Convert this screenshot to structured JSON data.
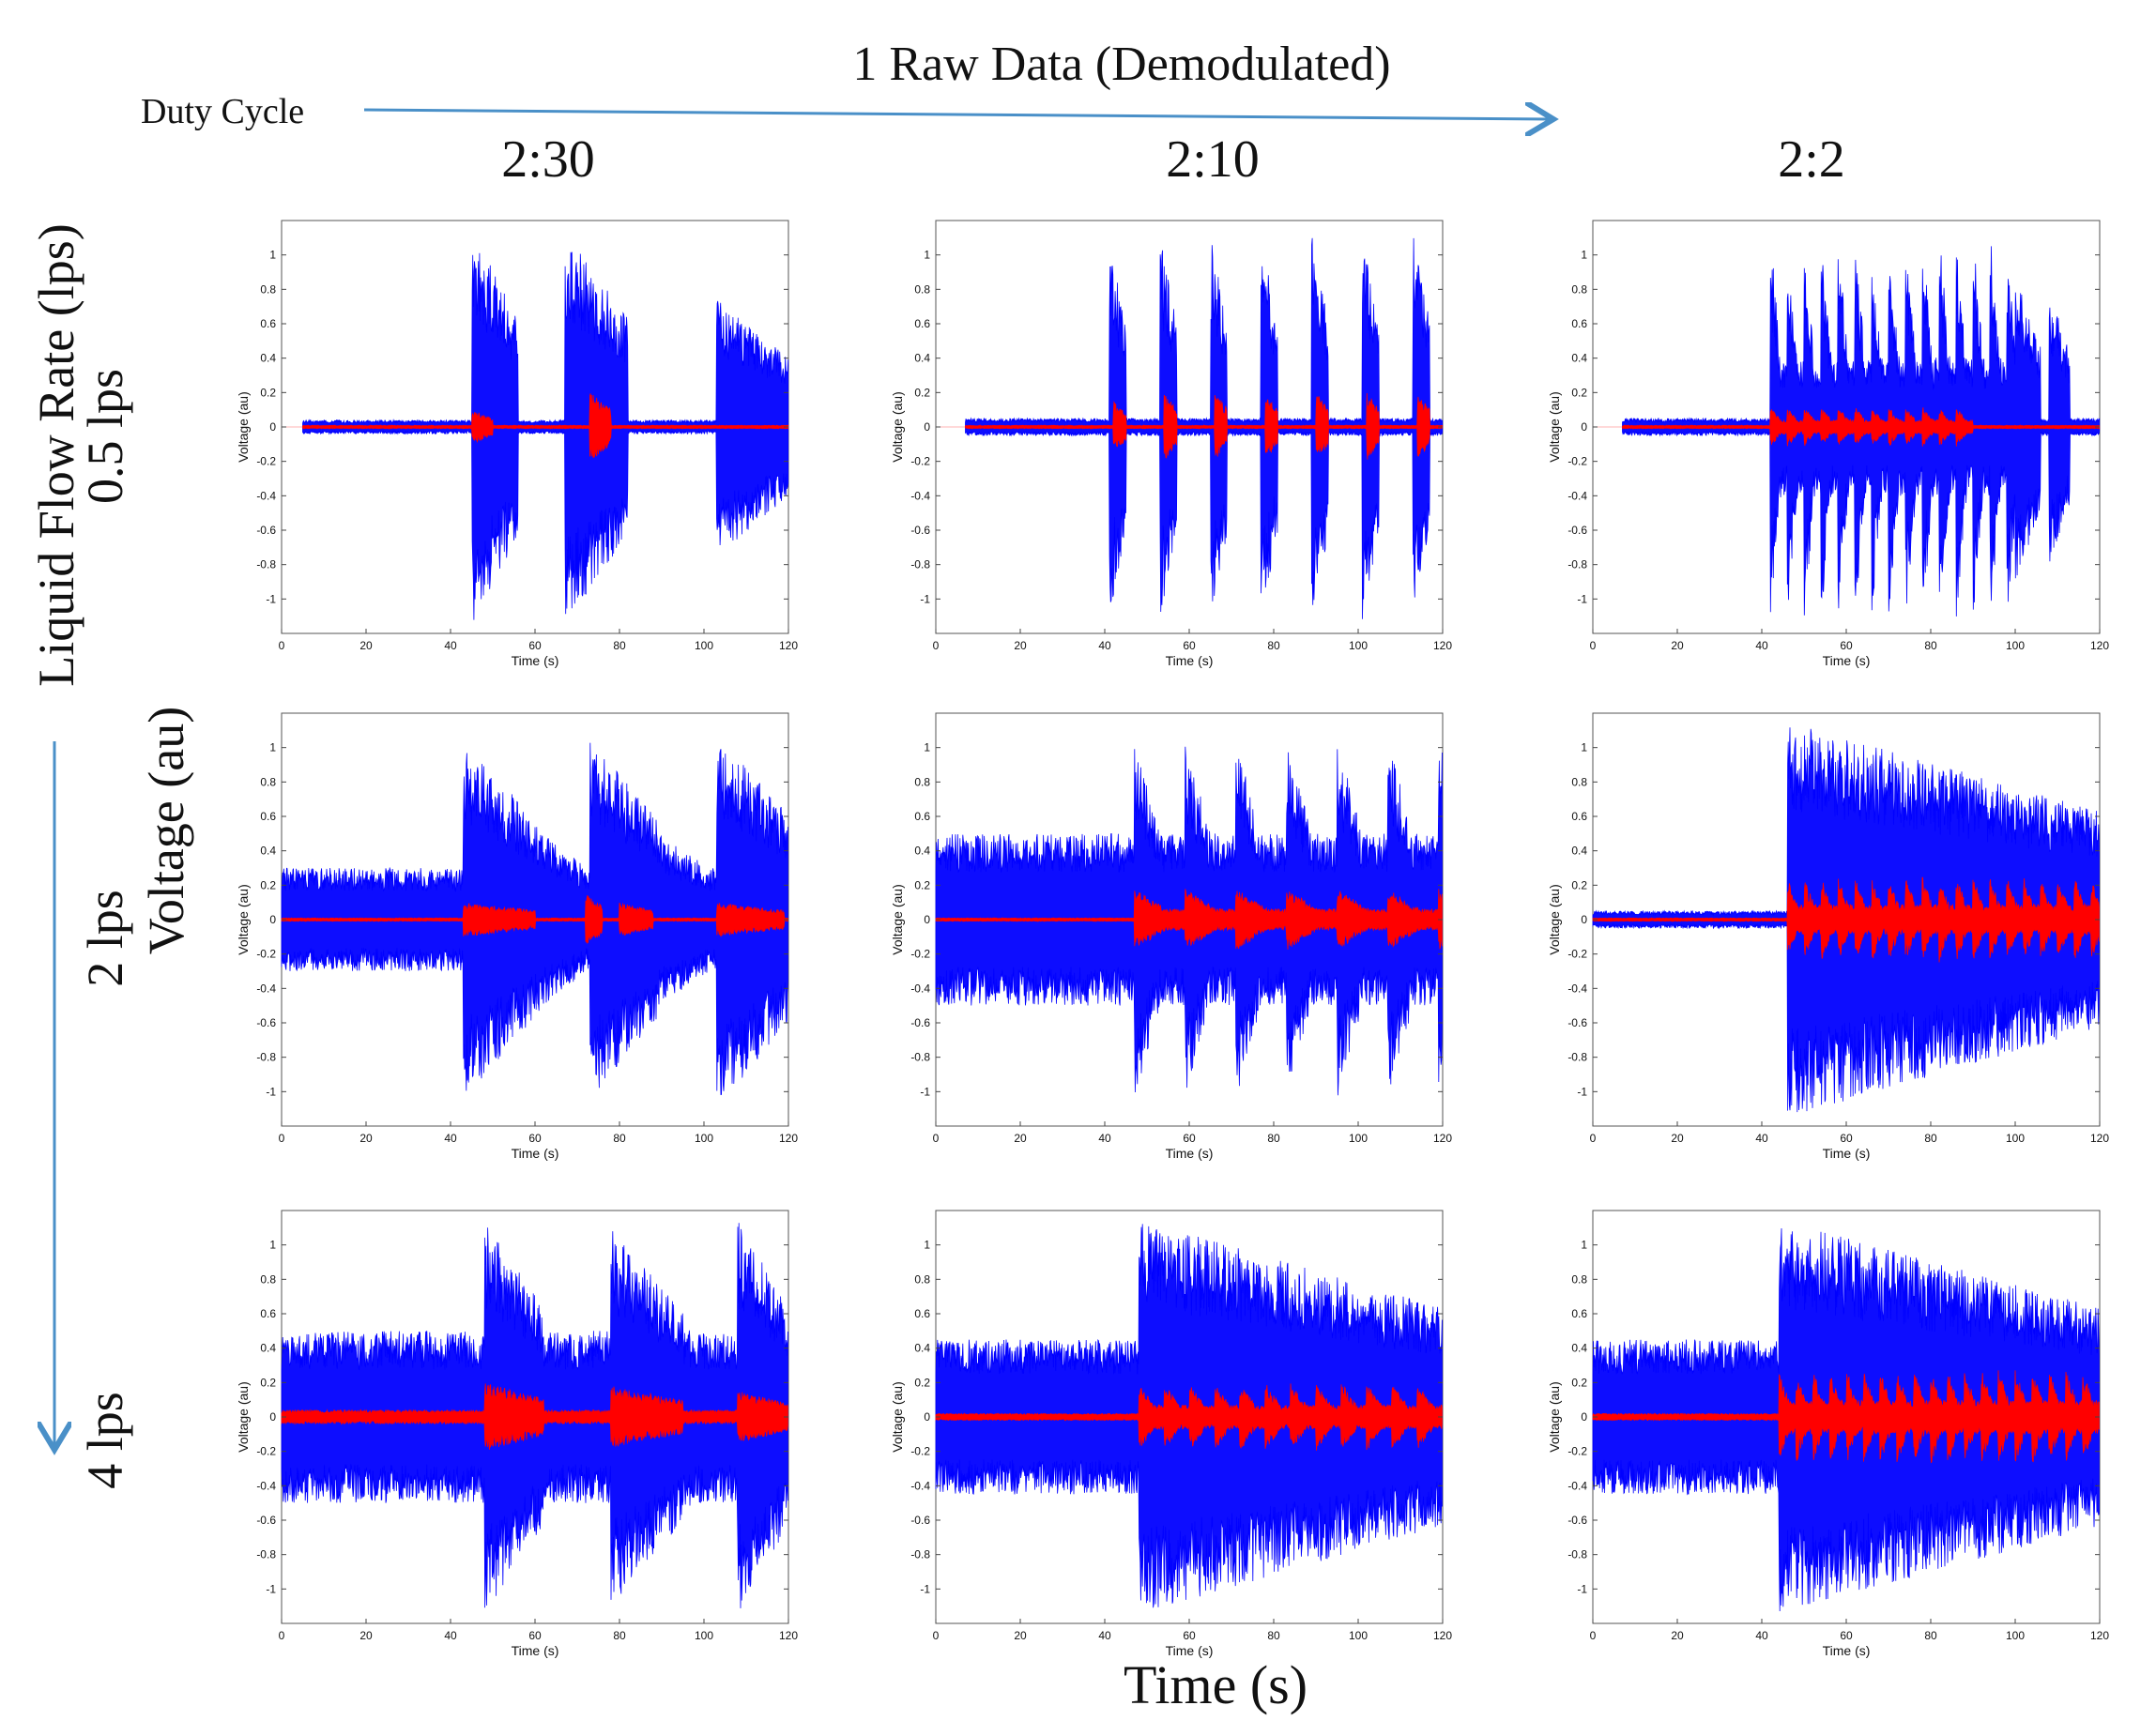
{
  "figure": {
    "title": "1 Raw Data (Demodulated)",
    "duty_cycle_label": "Duty Cycle",
    "columns": [
      "2:30",
      "2:10",
      "2:2"
    ],
    "flow_axis_label": "Liquid Flow Rate (lps)",
    "rows": [
      "0.5 lps",
      "2 lps",
      "4 lps"
    ],
    "common_ylabel": "Voltage (au)",
    "common_xlabel": "Time (s)",
    "colors": {
      "raw": "#0000ff",
      "demodulated": "#ff0000",
      "arrow": "#4a90c8"
    }
  },
  "chart_data": [
    {
      "type": "line",
      "row": "0.5 lps",
      "column": "2:30",
      "xlabel": "Time (s)",
      "ylabel": "Voltage (au)",
      "xlim": [
        0,
        120
      ],
      "ylim": [
        -1.2,
        1.2
      ],
      "xticks": [
        0,
        20,
        40,
        60,
        80,
        100,
        120
      ],
      "yticks": [
        1,
        0.8,
        0.6,
        0.4,
        0.2,
        0,
        -0.2,
        -0.4,
        -0.6,
        -0.8,
        -1
      ],
      "series": [
        {
          "name": "raw",
          "color": "#0000ff",
          "start": 5,
          "baseline": 0.04,
          "bursts": [
            {
              "t0": 45,
              "t1": 56,
              "amp": 1.15
            },
            {
              "t0": 67,
              "t1": 82,
              "amp": 1.15
            },
            {
              "t0": 103,
              "t1": 120,
              "amp": 0.75
            }
          ]
        },
        {
          "name": "demodulated",
          "color": "#ff0000",
          "start": 5,
          "baseline": 0.01,
          "bursts": [
            {
              "t0": 45,
              "t1": 50,
              "amp": 0.1
            },
            {
              "t0": 73,
              "t1": 78,
              "amp": 0.2
            }
          ]
        }
      ]
    },
    {
      "type": "line",
      "row": "0.5 lps",
      "column": "2:10",
      "xlabel": "Time (s)",
      "ylabel": "Voltage (au)",
      "xlim": [
        0,
        120
      ],
      "ylim": [
        -1.2,
        1.2
      ],
      "xticks": [
        0,
        20,
        40,
        60,
        80,
        100,
        120
      ],
      "yticks": [
        1,
        0.8,
        0.6,
        0.4,
        0.2,
        0,
        -0.2,
        -0.4,
        -0.6,
        -0.8,
        -1
      ],
      "series": [
        {
          "name": "raw",
          "color": "#0000ff",
          "start": 7,
          "baseline": 0.05,
          "bursts": [
            {
              "t0": 41,
              "t1": 45,
              "amp": 1.12
            },
            {
              "t0": 53,
              "t1": 57,
              "amp": 1.12
            },
            {
              "t0": 65,
              "t1": 69,
              "amp": 1.12
            },
            {
              "t0": 77,
              "t1": 81,
              "amp": 1.12
            },
            {
              "t0": 89,
              "t1": 93,
              "amp": 1.12
            },
            {
              "t0": 101,
              "t1": 105,
              "amp": 1.12
            },
            {
              "t0": 113,
              "t1": 117,
              "amp": 1.12
            }
          ]
        },
        {
          "name": "demodulated",
          "color": "#ff0000",
          "start": 7,
          "baseline": 0.01,
          "bursts": [
            {
              "t0": 42,
              "t1": 45,
              "amp": 0.15
            },
            {
              "t0": 54,
              "t1": 57,
              "amp": 0.2
            },
            {
              "t0": 66,
              "t1": 69,
              "amp": 0.2
            },
            {
              "t0": 78,
              "t1": 81,
              "amp": 0.2
            },
            {
              "t0": 90,
              "t1": 93,
              "amp": 0.2
            },
            {
              "t0": 102,
              "t1": 105,
              "amp": 0.2
            },
            {
              "t0": 114,
              "t1": 117,
              "amp": 0.2
            }
          ]
        }
      ]
    },
    {
      "type": "line",
      "row": "0.5 lps",
      "column": "2:2",
      "xlabel": "Time (s)",
      "ylabel": "Voltage (au)",
      "xlim": [
        0,
        120
      ],
      "ylim": [
        -1.2,
        1.2
      ],
      "xticks": [
        0,
        20,
        40,
        60,
        80,
        100,
        120
      ],
      "yticks": [
        1,
        0.8,
        0.6,
        0.4,
        0.2,
        0,
        -0.2,
        -0.4,
        -0.6,
        -0.8,
        -1
      ],
      "series": [
        {
          "name": "raw",
          "color": "#0000ff",
          "start": 7,
          "baseline": 0.05,
          "bursts": [
            {
              "t0": 42,
              "t1": 100,
              "amp": 1.15,
              "pulse": 4
            },
            {
              "t0": 100,
              "t1": 106,
              "amp": 0.9
            },
            {
              "t0": 108,
              "t1": 113,
              "amp": 0.8
            }
          ]
        },
        {
          "name": "demodulated",
          "color": "#ff0000",
          "start": 7,
          "baseline": 0.01,
          "bursts": [
            {
              "t0": 42,
              "t1": 90,
              "amp": 0.12,
              "pulse": 4
            }
          ]
        }
      ]
    },
    {
      "type": "line",
      "row": "2 lps",
      "column": "2:30",
      "xlabel": "Time (s)",
      "ylabel": "Voltage (au)",
      "xlim": [
        0,
        120
      ],
      "ylim": [
        -1.2,
        1.2
      ],
      "xticks": [
        0,
        20,
        40,
        60,
        80,
        100,
        120
      ],
      "yticks": [
        1,
        0.8,
        0.6,
        0.4,
        0.2,
        0,
        -0.2,
        -0.4,
        -0.6,
        -0.8,
        -1
      ],
      "series": [
        {
          "name": "raw",
          "color": "#0000ff",
          "start": 0,
          "baseline": 0.3,
          "bursts": [
            {
              "t0": 43,
              "t1": 60,
              "amp": 1.05
            },
            {
              "t0": 60,
              "t1": 72,
              "amp": 0.55
            },
            {
              "t0": 73,
              "t1": 89,
              "amp": 1.05
            },
            {
              "t0": 89,
              "t1": 103,
              "amp": 0.5
            },
            {
              "t0": 103,
              "t1": 120,
              "amp": 1.1
            }
          ]
        },
        {
          "name": "demodulated",
          "color": "#ff0000",
          "start": 0,
          "baseline": 0.01,
          "bursts": [
            {
              "t0": 43,
              "t1": 60,
              "amp": 0.1
            },
            {
              "t0": 72,
              "t1": 76,
              "amp": 0.15
            },
            {
              "t0": 80,
              "t1": 88,
              "amp": 0.1
            },
            {
              "t0": 103,
              "t1": 119,
              "amp": 0.1
            }
          ]
        }
      ]
    },
    {
      "type": "line",
      "row": "2 lps",
      "column": "2:10",
      "xlabel": "Time (s)",
      "ylabel": "Voltage (au)",
      "xlim": [
        0,
        120
      ],
      "ylim": [
        -1.2,
        1.2
      ],
      "xticks": [
        0,
        20,
        40,
        60,
        80,
        100,
        120
      ],
      "yticks": [
        1,
        0.8,
        0.6,
        0.4,
        0.2,
        0,
        -0.2,
        -0.4,
        -0.6,
        -0.8,
        -1
      ],
      "series": [
        {
          "name": "raw",
          "color": "#0000ff",
          "start": 0,
          "baseline": 0.5,
          "bursts": [
            {
              "t0": 30,
              "t1": 47,
              "amp": 0.3
            },
            {
              "t0": 47,
              "t1": 120,
              "amp": 1.05,
              "pulse": 12
            }
          ]
        },
        {
          "name": "demodulated",
          "color": "#ff0000",
          "start": 0,
          "baseline": 0.01,
          "bursts": [
            {
              "t0": 47,
              "t1": 120,
              "amp": 0.18,
              "pulse": 12
            }
          ]
        }
      ]
    },
    {
      "type": "line",
      "row": "2 lps",
      "column": "2:2",
      "xlabel": "Time (s)",
      "ylabel": "Voltage (au)",
      "xlim": [
        0,
        120
      ],
      "ylim": [
        -1.2,
        1.2
      ],
      "xticks": [
        0,
        20,
        40,
        60,
        80,
        100,
        120
      ],
      "yticks": [
        1,
        0.8,
        0.6,
        0.4,
        0.2,
        0,
        -0.2,
        -0.4,
        -0.6,
        -0.8,
        -1
      ],
      "series": [
        {
          "name": "raw",
          "color": "#0000ff",
          "start": 0,
          "baseline": 0.05,
          "bursts": [
            {
              "t0": 46,
              "t1": 120,
              "amp": 1.15
            }
          ]
        },
        {
          "name": "demodulated",
          "color": "#ff0000",
          "start": 0,
          "baseline": 0.01,
          "bursts": [
            {
              "t0": 46,
              "t1": 120,
              "amp": 0.25,
              "pulse": 4
            }
          ]
        }
      ]
    },
    {
      "type": "line",
      "row": "4 lps",
      "column": "2:30",
      "xlabel": "Time (s)",
      "ylabel": "Voltage (au)",
      "xlim": [
        0,
        120
      ],
      "ylim": [
        -1.2,
        1.2
      ],
      "xticks": [
        0,
        20,
        40,
        60,
        80,
        100,
        120
      ],
      "yticks": [
        1,
        0.8,
        0.6,
        0.4,
        0.2,
        0,
        -0.2,
        -0.4,
        -0.6,
        -0.8,
        -1
      ],
      "series": [
        {
          "name": "raw",
          "color": "#0000ff",
          "start": 0,
          "baseline": 0.5,
          "bursts": [
            {
              "t0": 48,
              "t1": 62,
              "amp": 1.15
            },
            {
              "t0": 62,
              "t1": 78,
              "amp": 0.5
            },
            {
              "t0": 78,
              "t1": 95,
              "amp": 1.1
            },
            {
              "t0": 95,
              "t1": 108,
              "amp": 0.55
            },
            {
              "t0": 108,
              "t1": 120,
              "amp": 1.15
            }
          ]
        },
        {
          "name": "demodulated",
          "color": "#ff0000",
          "start": 0,
          "baseline": 0.04,
          "bursts": [
            {
              "t0": 48,
              "t1": 62,
              "amp": 0.2
            },
            {
              "t0": 78,
              "t1": 95,
              "amp": 0.18
            },
            {
              "t0": 108,
              "t1": 120,
              "amp": 0.15
            }
          ]
        }
      ]
    },
    {
      "type": "line",
      "row": "4 lps",
      "column": "2:10",
      "xlabel": "Time (s)",
      "ylabel": "Voltage (au)",
      "xlim": [
        0,
        120
      ],
      "ylim": [
        -1.2,
        1.2
      ],
      "xticks": [
        0,
        20,
        40,
        60,
        80,
        100,
        120
      ],
      "yticks": [
        1,
        0.8,
        0.6,
        0.4,
        0.2,
        0,
        -0.2,
        -0.4,
        -0.6,
        -0.8,
        -1
      ],
      "series": [
        {
          "name": "raw",
          "color": "#0000ff",
          "start": 0,
          "baseline": 0.45,
          "bursts": [
            {
              "t0": 48,
              "t1": 120,
              "amp": 1.15
            }
          ]
        },
        {
          "name": "demodulated",
          "color": "#ff0000",
          "start": 0,
          "baseline": 0.02,
          "bursts": [
            {
              "t0": 48,
              "t1": 120,
              "amp": 0.2,
              "pulse": 6
            }
          ]
        }
      ]
    },
    {
      "type": "line",
      "row": "4 lps",
      "column": "2:2",
      "xlabel": "Time (s)",
      "ylabel": "Voltage (au)",
      "xlim": [
        0,
        120
      ],
      "ylim": [
        -1.2,
        1.2
      ],
      "xticks": [
        0,
        20,
        40,
        60,
        80,
        100,
        120
      ],
      "yticks": [
        1,
        0.8,
        0.6,
        0.4,
        0.2,
        0,
        -0.2,
        -0.4,
        -0.6,
        -0.8,
        -1
      ],
      "series": [
        {
          "name": "raw",
          "color": "#0000ff",
          "start": 0,
          "baseline": 0.45,
          "bursts": [
            {
              "t0": 44,
              "t1": 120,
              "amp": 1.15
            }
          ]
        },
        {
          "name": "demodulated",
          "color": "#ff0000",
          "start": 0,
          "baseline": 0.02,
          "bursts": [
            {
              "t0": 44,
              "t1": 120,
              "amp": 0.28,
              "pulse": 4
            }
          ]
        }
      ]
    }
  ]
}
